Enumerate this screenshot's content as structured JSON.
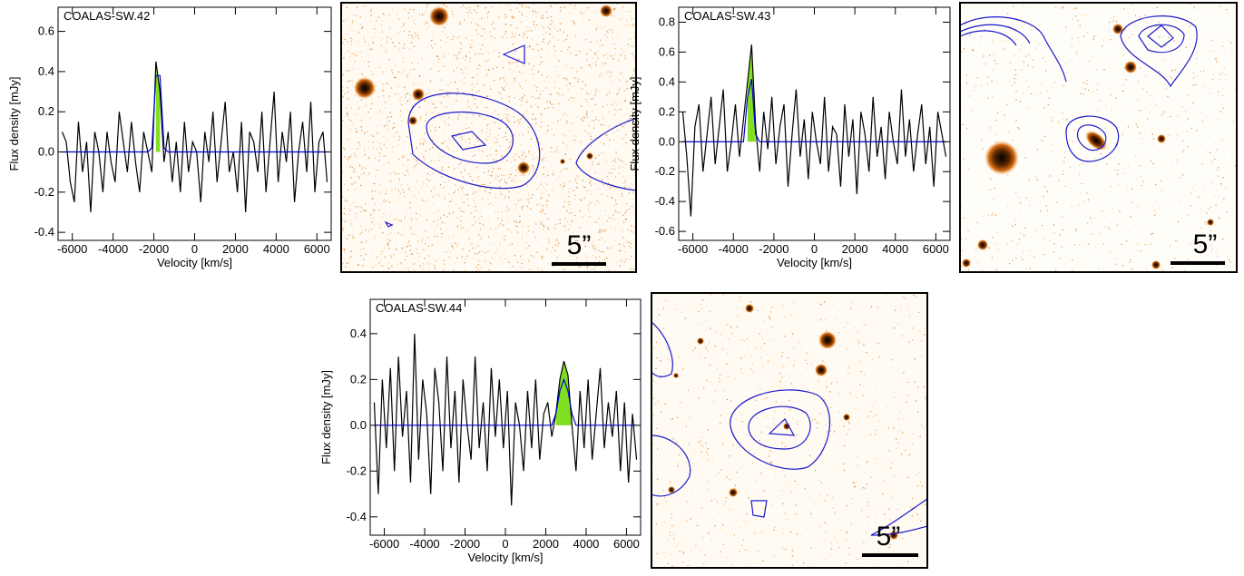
{
  "chart_data": [
    {
      "type": "line",
      "title": "COALAS-SW.42",
      "x_label": "Velocity [km/s]",
      "y_label": "Flux density [mJy]",
      "x": [
        -6500,
        -6300,
        -6100,
        -5900,
        -5700,
        -5500,
        -5300,
        -5100,
        -4900,
        -4700,
        -4500,
        -4300,
        -4100,
        -3900,
        -3700,
        -3500,
        -3300,
        -3100,
        -2900,
        -2700,
        -2500,
        -2300,
        -2100,
        -1900,
        -1700,
        -1500,
        -1300,
        -1100,
        -900,
        -700,
        -500,
        -300,
        -100,
        100,
        300,
        500,
        700,
        900,
        1100,
        1300,
        1500,
        1700,
        1900,
        2100,
        2300,
        2500,
        2700,
        2900,
        3100,
        3300,
        3500,
        3700,
        3900,
        4100,
        4300,
        4500,
        4700,
        4900,
        5100,
        5300,
        5500,
        5700,
        5900,
        6100,
        6300,
        6500
      ],
      "series": [
        {
          "color": "#000000",
          "values": [
            0.1,
            0.05,
            -0.15,
            -0.25,
            0.15,
            -0.1,
            0.05,
            -0.3,
            0.1,
            0.0,
            -0.2,
            0.1,
            -0.05,
            -0.15,
            0.2,
            0.05,
            -0.1,
            0.15,
            -0.05,
            -0.2,
            0.1,
            0.0,
            -0.1,
            0.45,
            0.3,
            -0.05,
            0.1,
            -0.15,
            0.05,
            -0.2,
            0.15,
            -0.1,
            0.05,
            0.0,
            -0.25,
            0.1,
            -0.05,
            0.2,
            -0.15,
            0.05,
            0.25,
            -0.1,
            0.0,
            -0.2,
            0.15,
            -0.3,
            0.1,
            0.05,
            -0.1,
            0.2,
            -0.2,
            0.05,
            0.3,
            -0.15,
            0.1,
            -0.05,
            0.2,
            -0.25,
            0.0,
            0.15,
            -0.1,
            0.25,
            -0.2,
            0.05,
            0.1,
            -0.15
          ]
        },
        {
          "color": "#0000cc",
          "values": [
            0,
            0,
            0,
            0,
            0,
            0,
            0,
            0,
            0,
            0,
            0,
            0,
            0,
            0,
            0,
            0,
            0,
            0,
            0,
            0,
            0,
            0,
            0.02,
            0.38,
            0.38,
            0.02,
            0,
            0,
            0,
            0,
            0,
            0,
            0,
            0,
            0,
            0,
            0,
            0,
            0,
            0,
            0,
            0,
            0,
            0,
            0,
            0,
            0,
            0,
            0,
            0,
            0,
            0,
            0,
            0,
            0,
            0,
            0,
            0,
            0,
            0,
            0,
            0,
            0,
            0,
            0,
            0
          ]
        }
      ],
      "highlight": {
        "series": 0,
        "xrange": [
          -1900,
          -1700
        ],
        "color": "#80e020"
      },
      "xlim": [
        -6700,
        6700
      ],
      "ylim": [
        -0.44,
        0.72
      ],
      "xticks": [
        -6000,
        -4000,
        -2000,
        0,
        2000,
        4000,
        6000
      ],
      "yticks": [
        -0.4,
        -0.2,
        {
          "value": 0,
          "label": "0.0"
        },
        0.2,
        0.4,
        0.6
      ]
    },
    {
      "type": "line",
      "title": "COALAS-SW.43",
      "x_label": "Velocity [km/s]",
      "y_label": "Flux density [mJy]",
      "x": [
        -6500,
        -6300,
        -6100,
        -5900,
        -5700,
        -5500,
        -5300,
        -5100,
        -4900,
        -4700,
        -4500,
        -4300,
        -4100,
        -3900,
        -3700,
        -3500,
        -3300,
        -3100,
        -2900,
        -2700,
        -2500,
        -2300,
        -2100,
        -1900,
        -1700,
        -1500,
        -1300,
        -1100,
        -900,
        -700,
        -500,
        -300,
        -100,
        100,
        300,
        500,
        700,
        900,
        1100,
        1300,
        1500,
        1700,
        1900,
        2100,
        2300,
        2500,
        2700,
        2900,
        3100,
        3300,
        3500,
        3700,
        3900,
        4100,
        4300,
        4500,
        4700,
        4900,
        5100,
        5300,
        5500,
        5700,
        5900,
        6100,
        6300,
        6500
      ],
      "series": [
        {
          "color": "#000000",
          "values": [
            0.2,
            -0.1,
            -0.5,
            0.1,
            0.25,
            -0.2,
            0.05,
            0.3,
            -0.15,
            0.1,
            0.35,
            -0.2,
            0.0,
            0.25,
            -0.1,
            0.15,
            0.4,
            0.65,
            0.1,
            -0.2,
            0.2,
            -0.05,
            0.3,
            -0.15,
            0.1,
            0.25,
            -0.3,
            0.05,
            0.35,
            -0.1,
            0.15,
            -0.25,
            0.2,
            0.0,
            -0.15,
            0.3,
            -0.2,
            0.1,
            0.05,
            -0.3,
            0.25,
            -0.1,
            0.15,
            -0.35,
            0.2,
            0.05,
            -0.2,
            0.3,
            -0.1,
            0.1,
            -0.25,
            0.2,
            0.0,
            -0.15,
            0.35,
            -0.1,
            0.15,
            -0.2,
            0.05,
            0.25,
            -0.15,
            0.1,
            -0.3,
            0.2,
            0.05,
            -0.1
          ]
        },
        {
          "color": "#0000cc",
          "values": [
            0,
            0,
            0,
            0,
            0,
            0,
            0,
            0,
            0,
            0,
            0,
            0,
            0,
            0,
            0,
            0,
            0.3,
            0.42,
            0.05,
            0,
            0,
            0,
            0,
            0,
            0,
            0,
            0,
            0,
            0,
            0,
            0,
            0,
            0,
            0,
            0,
            0,
            0,
            0,
            0,
            0,
            0,
            0,
            0,
            0,
            0,
            0,
            0,
            0,
            0,
            0,
            0,
            0,
            0,
            0,
            0,
            0,
            0,
            0,
            0,
            0,
            0,
            0,
            0,
            0,
            0,
            0
          ]
        }
      ],
      "highlight": {
        "series": 0,
        "xrange": [
          -3300,
          -2900
        ],
        "color": "#80e020"
      },
      "xlim": [
        -6700,
        6700
      ],
      "ylim": [
        -0.66,
        0.9
      ],
      "xticks": [
        -6000,
        -4000,
        -2000,
        0,
        2000,
        4000,
        6000
      ],
      "yticks": [
        -0.6,
        -0.4,
        -0.2,
        {
          "value": 0,
          "label": "0.0"
        },
        0.2,
        0.4,
        0.6,
        0.8
      ]
    },
    {
      "type": "line",
      "title": "COALAS-SW.44",
      "x_label": "Velocity [km/s]",
      "y_label": "Flux density [mJy]",
      "x": [
        -6500,
        -6300,
        -6100,
        -5900,
        -5700,
        -5500,
        -5300,
        -5100,
        -4900,
        -4700,
        -4500,
        -4300,
        -4100,
        -3900,
        -3700,
        -3500,
        -3300,
        -3100,
        -2900,
        -2700,
        -2500,
        -2300,
        -2100,
        -1900,
        -1700,
        -1500,
        -1300,
        -1100,
        -900,
        -700,
        -500,
        -300,
        -100,
        100,
        300,
        500,
        700,
        900,
        1100,
        1300,
        1500,
        1700,
        1900,
        2100,
        2300,
        2500,
        2700,
        2900,
        3100,
        3300,
        3500,
        3700,
        3900,
        4100,
        4300,
        4500,
        4700,
        4900,
        5100,
        5300,
        5500,
        5700,
        5900,
        6100,
        6300,
        6500
      ],
      "series": [
        {
          "color": "#000000",
          "values": [
            0.1,
            -0.3,
            0.2,
            -0.1,
            0.25,
            -0.2,
            0.3,
            -0.05,
            0.15,
            -0.25,
            0.4,
            -0.15,
            0.2,
            0.05,
            -0.3,
            0.25,
            0.1,
            -0.2,
            0.3,
            -0.1,
            0.15,
            -0.25,
            0.2,
            0.0,
            -0.15,
            0.3,
            -0.1,
            0.1,
            -0.2,
            0.25,
            -0.05,
            0.2,
            -0.1,
            0.15,
            -0.35,
            0.1,
            0.0,
            -0.2,
            0.15,
            -0.1,
            0.2,
            -0.15,
            0.05,
            0.1,
            -0.05,
            0.05,
            0.2,
            0.28,
            0.22,
            0.0,
            -0.2,
            0.15,
            -0.1,
            0.2,
            -0.15,
            0.05,
            0.25,
            -0.1,
            0.1,
            -0.05,
            0.15,
            -0.2,
            0.1,
            -0.25,
            0.05,
            -0.15
          ]
        },
        {
          "color": "#0000cc",
          "values": [
            0,
            0,
            0,
            0,
            0,
            0,
            0,
            0,
            0,
            0,
            0,
            0,
            0,
            0,
            0,
            0,
            0,
            0,
            0,
            0,
            0,
            0,
            0,
            0,
            0,
            0,
            0,
            0,
            0,
            0,
            0,
            0,
            0,
            0,
            0,
            0,
            0,
            0,
            0,
            0,
            0,
            0,
            0,
            0,
            0,
            0.05,
            0.15,
            0.2,
            0.15,
            0.05,
            0,
            0,
            0,
            0,
            0,
            0,
            0,
            0,
            0,
            0,
            0,
            0,
            0,
            0,
            0,
            0
          ]
        }
      ],
      "highlight": {
        "series": 0,
        "xrange": [
          2500,
          3300
        ],
        "color": "#80e020"
      },
      "xlim": [
        -6700,
        6700
      ],
      "ylim": [
        -0.48,
        0.55
      ],
      "xticks": [
        -6000,
        -4000,
        -2000,
        0,
        2000,
        4000,
        6000
      ],
      "yticks": [
        -0.4,
        -0.2,
        {
          "value": 0,
          "label": "0.0"
        },
        0.2,
        0.4
      ]
    }
  ],
  "images": [
    {
      "scale_label": "5”"
    },
    {
      "scale_label": "5”"
    },
    {
      "scale_label": "5”"
    }
  ]
}
